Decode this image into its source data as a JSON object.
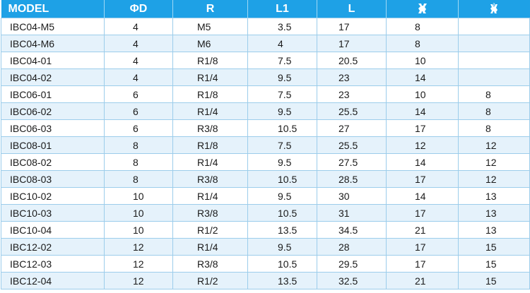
{
  "header": {
    "model": "MODEL",
    "diameter": "ΦD",
    "r": "R",
    "l1": "L1",
    "l": "L",
    "hex1_icon": "wrench-icon",
    "hex2_icon": "wrench-icon-small"
  },
  "colors": {
    "header_bg": "#1ea1e6",
    "alt_row": "#e5f2fb",
    "border": "#9ccdeb"
  },
  "rows": [
    {
      "model": "IBC04-M5",
      "d": "4",
      "r": "M5",
      "l1": "3.5",
      "l": "17",
      "h1": "8",
      "h2": ""
    },
    {
      "model": "IBC04-M6",
      "d": "4",
      "r": "M6",
      "l1": "4",
      "l": "17",
      "h1": "8",
      "h2": ""
    },
    {
      "model": "IBC04-01",
      "d": "4",
      "r": "R1/8",
      "l1": "7.5",
      "l": "20.5",
      "h1": "10",
      "h2": ""
    },
    {
      "model": "IBC04-02",
      "d": "4",
      "r": "R1/4",
      "l1": "9.5",
      "l": "23",
      "h1": "14",
      "h2": ""
    },
    {
      "model": "IBC06-01",
      "d": "6",
      "r": "R1/8",
      "l1": "7.5",
      "l": "23",
      "h1": "10",
      "h2": "8"
    },
    {
      "model": "IBC06-02",
      "d": "6",
      "r": "R1/4",
      "l1": "9.5",
      "l": "25.5",
      "h1": "14",
      "h2": "8"
    },
    {
      "model": "IBC06-03",
      "d": "6",
      "r": "R3/8",
      "l1": "10.5",
      "l": "27",
      "h1": "17",
      "h2": "8"
    },
    {
      "model": "IBC08-01",
      "d": "8",
      "r": "R1/8",
      "l1": "7.5",
      "l": "25.5",
      "h1": "12",
      "h2": "12"
    },
    {
      "model": "IBC08-02",
      "d": "8",
      "r": "R1/4",
      "l1": "9.5",
      "l": "27.5",
      "h1": "14",
      "h2": "12"
    },
    {
      "model": "IBC08-03",
      "d": "8",
      "r": "R3/8",
      "l1": "10.5",
      "l": "28.5",
      "h1": "17",
      "h2": "12"
    },
    {
      "model": "IBC10-02",
      "d": "10",
      "r": "R1/4",
      "l1": "9.5",
      "l": "30",
      "h1": "14",
      "h2": "13"
    },
    {
      "model": "IBC10-03",
      "d": "10",
      "r": "R3/8",
      "l1": "10.5",
      "l": "31",
      "h1": "17",
      "h2": "13"
    },
    {
      "model": "IBC10-04",
      "d": "10",
      "r": "R1/2",
      "l1": "13.5",
      "l": "34.5",
      "h1": "21",
      "h2": "13"
    },
    {
      "model": "IBC12-02",
      "d": "12",
      "r": "R1/4",
      "l1": "9.5",
      "l": "28",
      "h1": "17",
      "h2": "15"
    },
    {
      "model": "IBC12-03",
      "d": "12",
      "r": "R3/8",
      "l1": "10.5",
      "l": "29.5",
      "h1": "17",
      "h2": "15"
    },
    {
      "model": "IBC12-04",
      "d": "12",
      "r": "R1/2",
      "l1": "13.5",
      "l": "32.5",
      "h1": "21",
      "h2": "15"
    }
  ]
}
